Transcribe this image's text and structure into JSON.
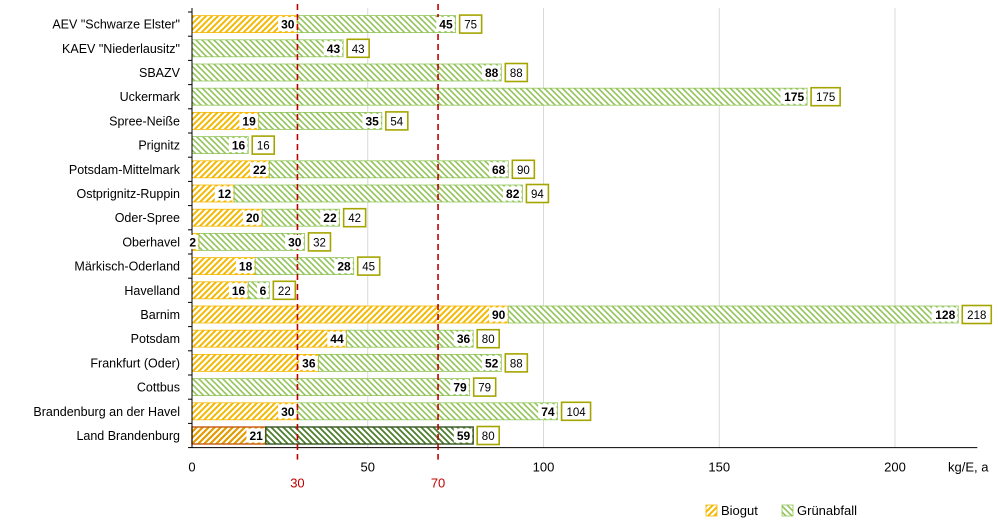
{
  "chart_data": {
    "type": "bar",
    "orientation": "horizontal",
    "stacked": true,
    "categories": [
      "AEV \"Schwarze Elster\"",
      "KAEV \"Niederlausitz\"",
      "SBAZV",
      "Uckermark",
      "Spree-Neiße",
      "Prignitz",
      "Potsdam-Mittelmark",
      "Ostprignitz-Ruppin",
      "Oder-Spree",
      "Oberhavel",
      "Märkisch-Oderland",
      "Havelland",
      "Barnim",
      "Potsdam",
      "Frankfurt (Oder)",
      "Cottbus",
      "Brandenburg an der Havel",
      "Land Brandenburg"
    ],
    "series": [
      {
        "name": "Biogut",
        "color": "#f5b800",
        "values": [
          30,
          0,
          0,
          0,
          19,
          0,
          22,
          12,
          20,
          2,
          18,
          16,
          90,
          44,
          36,
          0,
          30,
          21
        ]
      },
      {
        "name": "Grünabfall",
        "color": "#92c558",
        "values": [
          45,
          43,
          88,
          175,
          35,
          16,
          68,
          82,
          22,
          30,
          28,
          6,
          128,
          36,
          52,
          79,
          74,
          59
        ]
      }
    ],
    "totals": [
      75,
      43,
      88,
      175,
      54,
      16,
      90,
      94,
      42,
      32,
      45,
      22,
      218,
      80,
      88,
      79,
      104,
      80
    ],
    "x_ticks": [
      "0",
      "50",
      "100",
      "150",
      "200"
    ],
    "xlim": [
      0,
      220
    ],
    "x_unit_label": "kg/E, a",
    "reference_lines": [
      {
        "value": 30,
        "label": "30",
        "color": "#c00000"
      },
      {
        "value": 70,
        "label": "70",
        "color": "#c00000"
      }
    ],
    "grid": "vertical",
    "legend_position": "bottom-right",
    "highlighted_category": "Land Brandenburg"
  }
}
